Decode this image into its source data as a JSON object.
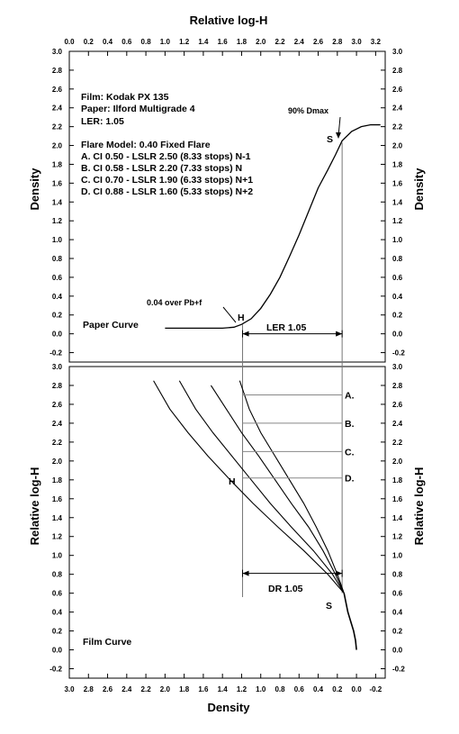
{
  "chart_data": [
    {
      "id": "paper",
      "type": "line",
      "title": "Relative log-H",
      "xlabel_top": "Relative log-H",
      "ylabel_left": "Density",
      "ylabel_right": "Density",
      "xlim": [
        0,
        3.3
      ],
      "ylim": [
        -0.2,
        3.0
      ],
      "x_ticks": [
        "0.0",
        "0.2",
        "0.4",
        "0.6",
        "0.8",
        "1.0",
        "1.2",
        "1.4",
        "1.6",
        "1.8",
        "2.0",
        "2.2",
        "2.4",
        "2.6",
        "2.8",
        "3.0",
        "3.2"
      ],
      "y_ticks": [
        "-0.2",
        "0.0",
        "0.2",
        "0.4",
        "0.6",
        "0.8",
        "1.0",
        "1.2",
        "1.4",
        "1.6",
        "1.8",
        "2.0",
        "2.2",
        "2.4",
        "2.6",
        "2.8",
        "3.0"
      ],
      "legend_lines": [
        "Film: Kodak PX 135",
        "Paper: Ilford Multigrade 4",
        "LER: 1.05",
        "Flare Model: 0.40 Fixed Flare",
        "A. CI 0.50 - LSLR 2.50 (8.33 stops)  N-1",
        "B. CI 0.58 - LSLR 2.20 (7.33 stops)  N",
        "C. CI 0.70 - LSLR 1.90 (6.33 stops)  N+1",
        "D. CI 0.88 - LSLR 1.60 (5.33 stops)  N+2"
      ],
      "curve_label": "Paper Curve",
      "annotations": {
        "dmax": "90% Dmax",
        "s_point": "S",
        "h_point": "H",
        "over_base": "0.04 over Pb+f",
        "range": "LER 1.05"
      },
      "series": [
        {
          "points": [
            [
              1.0,
              0.06
            ],
            [
              1.2,
              0.06
            ],
            [
              1.4,
              0.06
            ],
            [
              1.6,
              0.06
            ],
            [
              1.72,
              0.07
            ],
            [
              1.8,
              0.1
            ],
            [
              1.9,
              0.16
            ],
            [
              2.0,
              0.27
            ],
            [
              2.1,
              0.42
            ],
            [
              2.2,
              0.6
            ],
            [
              2.3,
              0.82
            ],
            [
              2.4,
              1.05
            ],
            [
              2.5,
              1.3
            ],
            [
              2.6,
              1.55
            ],
            [
              2.7,
              1.74
            ],
            [
              2.78,
              1.9
            ],
            [
              2.85,
              2.05
            ],
            [
              2.95,
              2.15
            ],
            [
              3.05,
              2.2
            ],
            [
              3.15,
              2.22
            ],
            [
              3.25,
              2.22
            ]
          ]
        }
      ],
      "marks": {
        "H": [
          1.81,
          0.1
        ],
        "S": [
          2.85,
          2.03
        ]
      }
    },
    {
      "id": "film",
      "type": "line",
      "xlabel_bottom": "Density",
      "ylabel_left": "Relative log-H",
      "ylabel_right": "Relative log-H",
      "xlim": [
        3.0,
        -0.3
      ],
      "ylim": [
        -0.2,
        3.0
      ],
      "x_ticks": [
        "3.0",
        "2.8",
        "2.6",
        "2.4",
        "2.2",
        "2.0",
        "1.8",
        "1.6",
        "1.4",
        "1.2",
        "1.0",
        "0.8",
        "0.6",
        "0.4",
        "0.2",
        "0.0",
        "-0.2"
      ],
      "y_ticks": [
        "-0.2",
        "0.0",
        "0.2",
        "0.4",
        "0.6",
        "0.8",
        "1.0",
        "1.2",
        "1.4",
        "1.6",
        "1.8",
        "2.0",
        "2.2",
        "2.4",
        "2.6",
        "2.8",
        "3.0"
      ],
      "curve_label": "Film Curve",
      "annotations": {
        "s_point": "S",
        "h_point": "H",
        "range": "DR 1.05"
      },
      "toe": [
        [
          0.0,
          0.0
        ],
        [
          0.01,
          0.1
        ],
        [
          0.03,
          0.2
        ],
        [
          0.06,
          0.3
        ],
        [
          0.09,
          0.4
        ],
        [
          0.11,
          0.5
        ],
        [
          0.13,
          0.6
        ]
      ],
      "series": [
        {
          "name": "A.",
          "points": [
            [
              0.13,
              0.6
            ],
            [
              0.2,
              0.8
            ],
            [
              0.3,
              1.05
            ],
            [
              0.42,
              1.3
            ],
            [
              0.55,
              1.55
            ],
            [
              0.7,
              1.8
            ],
            [
              0.85,
              2.05
            ],
            [
              1.0,
              2.3
            ],
            [
              1.12,
              2.55
            ],
            [
              1.22,
              2.85
            ]
          ]
        },
        {
          "name": "B.",
          "points": [
            [
              0.13,
              0.6
            ],
            [
              0.22,
              0.8
            ],
            [
              0.35,
              1.05
            ],
            [
              0.5,
              1.3
            ],
            [
              0.68,
              1.55
            ],
            [
              0.85,
              1.8
            ],
            [
              1.02,
              2.05
            ],
            [
              1.2,
              2.3
            ],
            [
              1.36,
              2.55
            ],
            [
              1.52,
              2.8
            ]
          ]
        },
        {
          "name": "C.",
          "points": [
            [
              0.13,
              0.6
            ],
            [
              0.25,
              0.8
            ],
            [
              0.45,
              1.05
            ],
            [
              0.68,
              1.3
            ],
            [
              0.9,
              1.55
            ],
            [
              1.1,
              1.8
            ],
            [
              1.3,
              2.05
            ],
            [
              1.5,
              2.3
            ],
            [
              1.68,
              2.55
            ],
            [
              1.85,
              2.85
            ]
          ]
        },
        {
          "name": "D.",
          "points": [
            [
              0.13,
              0.6
            ],
            [
              0.3,
              0.8
            ],
            [
              0.55,
              1.05
            ],
            [
              0.82,
              1.3
            ],
            [
              1.08,
              1.55
            ],
            [
              1.32,
              1.8
            ],
            [
              1.55,
              2.05
            ],
            [
              1.76,
              2.3
            ],
            [
              1.95,
              2.55
            ],
            [
              2.12,
              2.85
            ]
          ]
        }
      ],
      "marks": {
        "H": [
          1.18,
          1.82
        ],
        "S": [
          0.13,
          0.6
        ]
      },
      "row_markers": [
        {
          "label": "A.",
          "y": 2.7
        },
        {
          "label": "B.",
          "y": 2.4
        },
        {
          "label": "C.",
          "y": 2.1
        },
        {
          "label": "D.",
          "y": 1.82
        }
      ]
    }
  ]
}
